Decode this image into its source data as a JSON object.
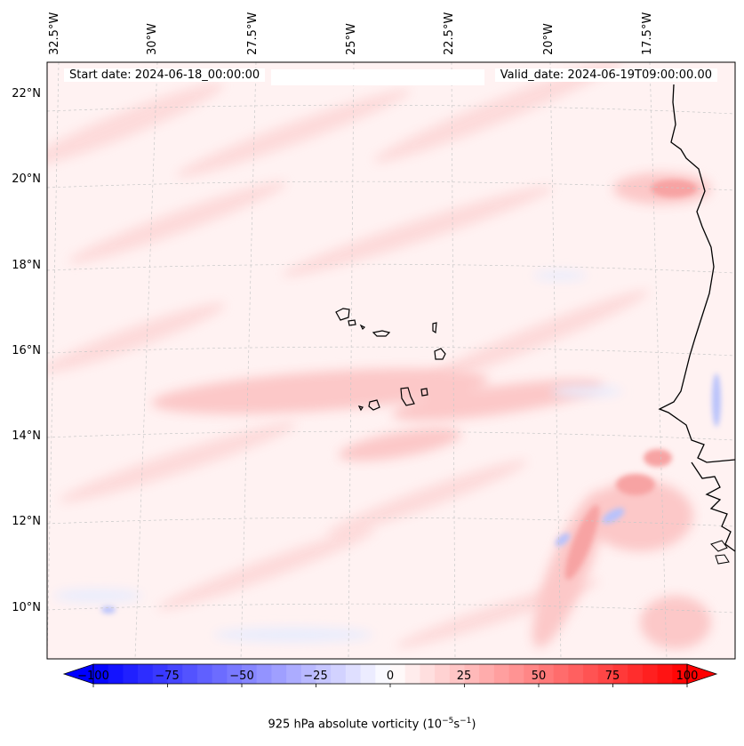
{
  "map": {
    "start_label": "Start date: 2024-06-18_00:00:00",
    "valid_label": "Valid_date: 2024-06-19T09:00:00.00",
    "longitude_labels": [
      "32.5°W",
      "30°W",
      "27.5°W",
      "25°W",
      "22.5°W",
      "20°W",
      "17.5°W"
    ],
    "latitude_labels": [
      "22°N",
      "20°N",
      "18°N",
      "16°N",
      "14°N",
      "12°N",
      "10°N"
    ]
  },
  "colorbar": {
    "ticks": [
      "−100",
      "−75",
      "−50",
      "−25",
      "0",
      "25",
      "50",
      "75",
      "100"
    ],
    "label_prefix": "925 hPa absolute vorticity (10",
    "label_exp1": "−5",
    "label_mid": "s",
    "label_exp2": "−1",
    "label_suffix": ")",
    "min": -100,
    "max": 100,
    "colors": {
      "negative": "#0000ff",
      "neutral": "#ffffff",
      "positive": "#ff0000"
    }
  }
}
